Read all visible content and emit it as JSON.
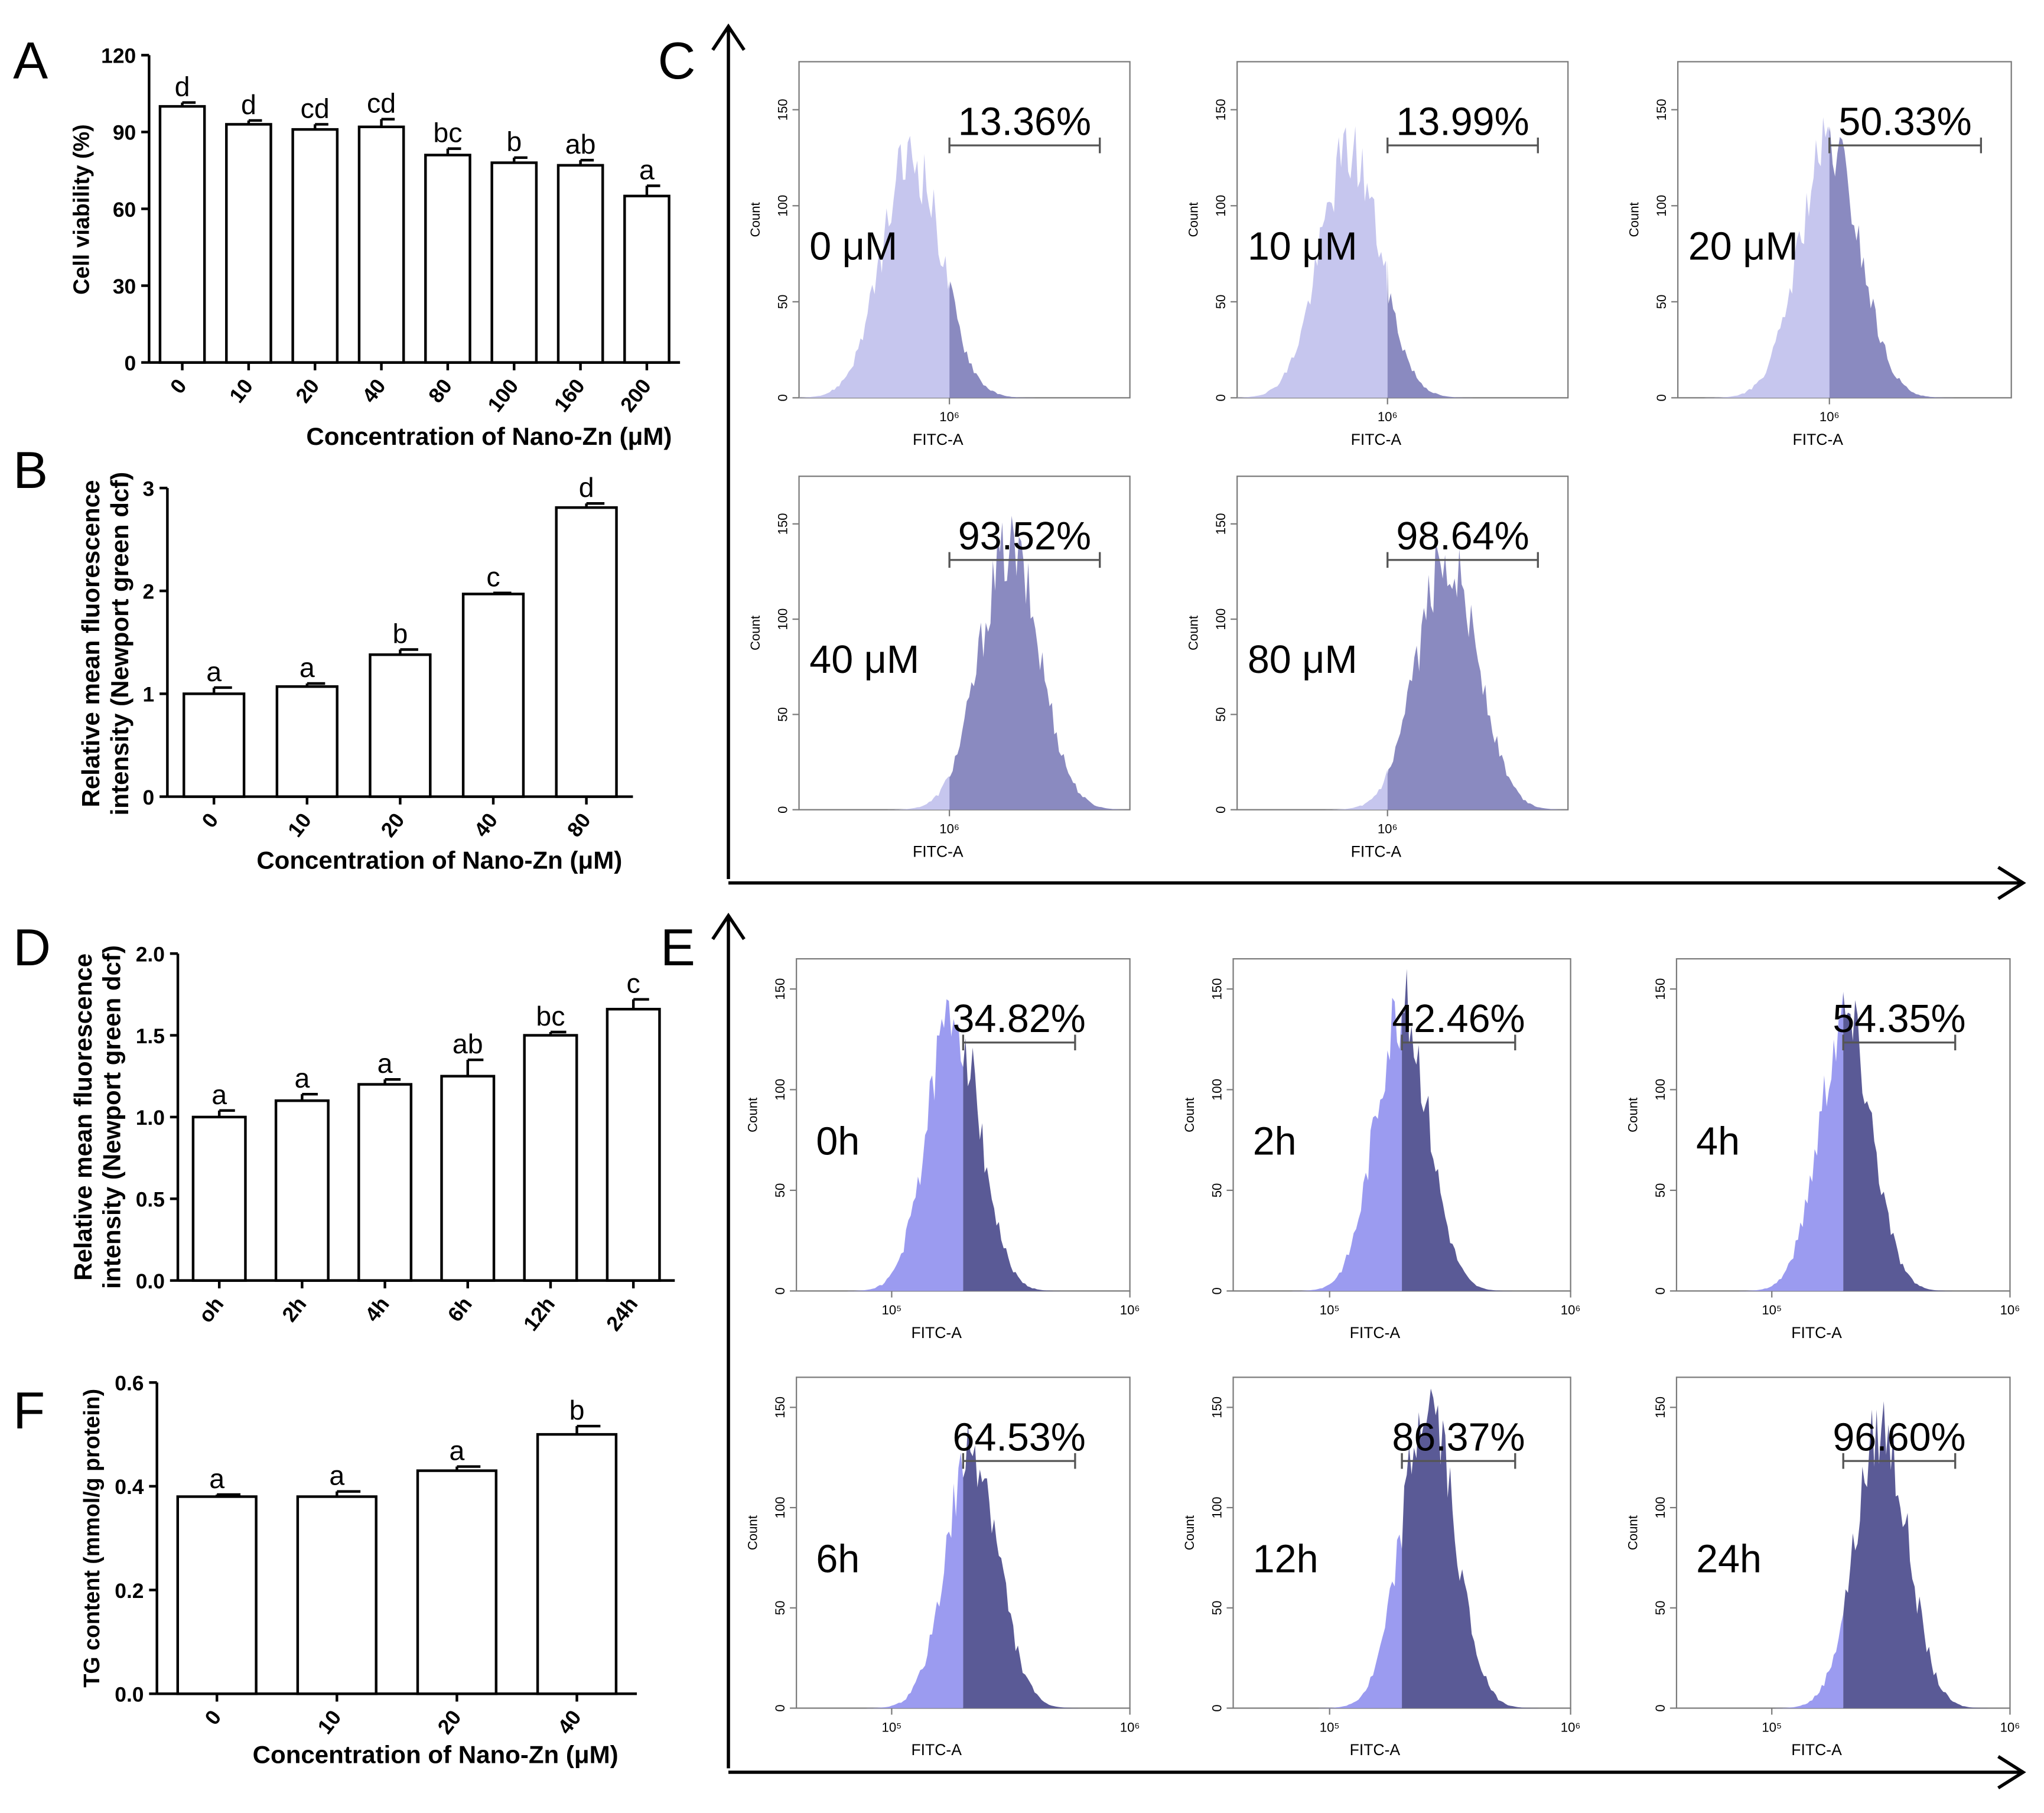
{
  "figure": {
    "colors": {
      "bar_fill": "#ffffff",
      "stroke": "#000000",
      "hist_light_C": "#c6c6ee",
      "hist_dark_C": "#8a8ac0",
      "hist_light_E": "#9b9bf0",
      "hist_dark_E": "#5a5a96",
      "flow_axis": "#7a7a7a"
    }
  },
  "chart_data": [
    {
      "panel": "A",
      "type": "bar",
      "categories": [
        "0",
        "10",
        "20",
        "40",
        "80",
        "100",
        "160",
        "200"
      ],
      "values": [
        100,
        93,
        91,
        92,
        81,
        78,
        77,
        65
      ],
      "errors": [
        1.5,
        1.5,
        2,
        3,
        2.5,
        2,
        2,
        4
      ],
      "letters": [
        "d",
        "d",
        "cd",
        "cd",
        "bc",
        "b",
        "ab",
        "a"
      ],
      "ylim": [
        0,
        120
      ],
      "yticks": [
        0,
        30,
        60,
        90,
        120
      ],
      "ylabel": "Cell viability (%)",
      "xlabel": "Concentration of Nano-Zn (μM)"
    },
    {
      "panel": "B",
      "type": "bar",
      "categories": [
        "0",
        "10",
        "20",
        "40",
        "80"
      ],
      "values": [
        1.0,
        1.07,
        1.38,
        1.97,
        2.81
      ],
      "errors": [
        0.06,
        0.03,
        0.05,
        0.01,
        0.04
      ],
      "letters": [
        "a",
        "a",
        "b",
        "c",
        "d"
      ],
      "ylim": [
        0,
        3
      ],
      "yticks": [
        0,
        1,
        2,
        3
      ],
      "ylabel": [
        "Relative mean fluorescence",
        "intensity (Newport green dcf)"
      ],
      "xlabel": "Concentration of Nano-Zn (μM)"
    },
    {
      "panel": "D",
      "type": "bar",
      "categories": [
        "oh",
        "2h",
        "4h",
        "6h",
        "12h",
        "24h"
      ],
      "values": [
        1.0,
        1.1,
        1.2,
        1.25,
        1.5,
        1.66
      ],
      "errors": [
        0.04,
        0.04,
        0.03,
        0.1,
        0.02,
        0.06
      ],
      "letters": [
        "a",
        "a",
        "a",
        "ab",
        "bc",
        "c"
      ],
      "ylim": [
        0,
        2.0
      ],
      "yticks": [
        0.0,
        0.5,
        1.0,
        1.5,
        2.0
      ],
      "ytick_labels": [
        "0.0",
        "0.5",
        "1.0",
        "1.5",
        "2.0"
      ],
      "ylabel": [
        "Relative mean fluorescence",
        "intensity (Newport green dcf)"
      ],
      "xlabel": ""
    },
    {
      "panel": "F",
      "type": "bar",
      "categories": [
        "0",
        "10",
        "20",
        "40"
      ],
      "values": [
        0.38,
        0.38,
        0.43,
        0.5
      ],
      "errors": [
        0.004,
        0.01,
        0.008,
        0.016
      ],
      "letters": [
        "a",
        "a",
        "a",
        "b"
      ],
      "ylim": [
        0,
        0.6
      ],
      "yticks": [
        0.0,
        0.2,
        0.4,
        0.6
      ],
      "ytick_labels": [
        "0.0",
        "0.2",
        "0.4",
        "0.6"
      ],
      "ylabel": "TG content (mmol/g protein)",
      "xlabel": "Concentration of Nano-Zn (μM)"
    },
    {
      "panel": "C",
      "type": "histogram",
      "xlabel": "FITC-A",
      "ylabel": "Count",
      "yticks": [
        "0",
        "50",
        "100",
        "150"
      ],
      "ytick_values": [
        0,
        50,
        100,
        150
      ],
      "ymax": 175,
      "xticks": [
        "10⁶"
      ],
      "plots": [
        {
          "label": "0 μM",
          "percent": "13.36%",
          "peak_log": -0.25,
          "sd": 0.2,
          "peak": 125
        },
        {
          "label": "10 μM",
          "percent": "13.99%",
          "peak_log": -0.25,
          "sd": 0.2,
          "peak": 128
        },
        {
          "label": "20 μM",
          "percent": "50.33%",
          "peak_log": 0.0,
          "sd": 0.2,
          "peak": 130
        },
        {
          "label": "40 μM",
          "percent": "93.52%",
          "peak_log": 0.4,
          "sd": 0.2,
          "peak": 137
        },
        {
          "label": "80 μM",
          "percent": "98.64%",
          "peak_log": 0.4,
          "sd": 0.2,
          "peak": 133
        }
      ]
    },
    {
      "panel": "E",
      "type": "histogram",
      "xlabel": "FITC-A",
      "ylabel": "Count",
      "yticks": [
        "0",
        "50",
        "100",
        "150"
      ],
      "ytick_values": [
        0,
        50,
        100,
        150
      ],
      "ymax": 165,
      "xticks": [
        "10⁵",
        "10⁶"
      ],
      "plots": [
        {
          "label": "0h",
          "percent": "34.82%",
          "peak_log": 5.26,
          "sd": 0.11,
          "peak": 138
        },
        {
          "label": "2h",
          "percent": "42.46%",
          "peak_log": 5.3,
          "sd": 0.11,
          "peak": 142
        },
        {
          "label": "4h",
          "percent": "54.35%",
          "peak_log": 5.31,
          "sd": 0.11,
          "peak": 138
        },
        {
          "label": "6h",
          "percent": "64.53%",
          "peak_log": 5.34,
          "sd": 0.11,
          "peak": 127
        },
        {
          "label": "12h",
          "percent": "86.37%",
          "peak_log": 5.41,
          "sd": 0.11,
          "peak": 150
        },
        {
          "label": "24h",
          "percent": "96.60%",
          "peak_log": 5.46,
          "sd": 0.11,
          "peak": 140
        }
      ]
    }
  ]
}
